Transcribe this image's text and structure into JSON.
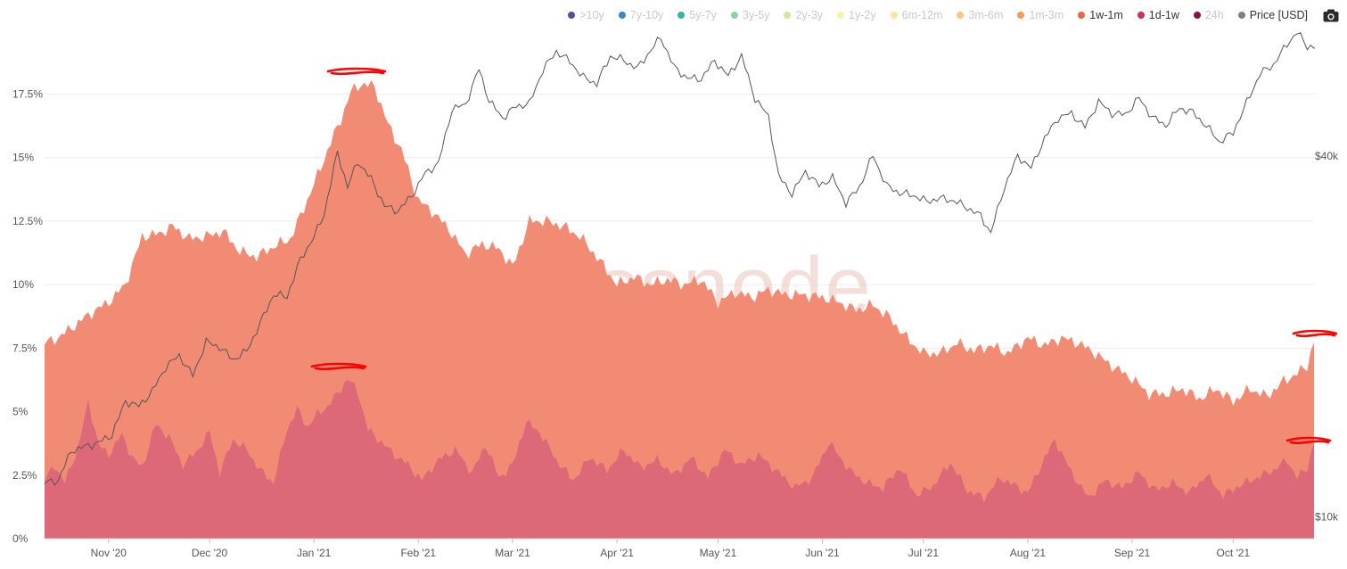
{
  "legend": [
    {
      "label": ">10y",
      "color": "#5b4a9c",
      "active": false
    },
    {
      "label": "7y-10y",
      "color": "#3a86c8",
      "active": false
    },
    {
      "label": "5y-7y",
      "color": "#3bb3a3",
      "active": false
    },
    {
      "label": "3y-5y",
      "color": "#8fd3a0",
      "active": false
    },
    {
      "label": "2y-3y",
      "color": "#cdeb9a",
      "active": false
    },
    {
      "label": "1y-2y",
      "color": "#f6f3a6",
      "active": false
    },
    {
      "label": "6m-12m",
      "color": "#fde59a",
      "active": false
    },
    {
      "label": "3m-6m",
      "color": "#fdc57f",
      "active": false
    },
    {
      "label": "1m-3m",
      "color": "#f89a5f",
      "active": false
    },
    {
      "label": "1w-1m",
      "color": "#ec6547",
      "active": true
    },
    {
      "label": "1d-1w",
      "color": "#cc3455",
      "active": true
    },
    {
      "label": "24h",
      "color": "#8e0f45",
      "active": false
    },
    {
      "label": "Price [USD]",
      "color": "#808080",
      "active": true
    }
  ],
  "toolbar": {
    "camera_icon": "camera-icon"
  },
  "watermark": "glassnode",
  "colors": {
    "area_1w_1m": "#f28b74",
    "area_1d_1w": "#dd6878",
    "price_line": "#555555",
    "annotation": "#ff0000"
  },
  "chart_data": {
    "type": "area",
    "x_start": "2020-10-13",
    "x_end": "2021-10-25",
    "x_ticks": [
      {
        "label": "Nov '20",
        "date": "2020-11-01"
      },
      {
        "label": "Dec '20",
        "date": "2020-12-01"
      },
      {
        "label": "Jan '21",
        "date": "2021-01-01"
      },
      {
        "label": "Feb '21",
        "date": "2021-02-01"
      },
      {
        "label": "Mar '21",
        "date": "2021-03-01"
      },
      {
        "label": "Apr '21",
        "date": "2021-04-01"
      },
      {
        "label": "May '21",
        "date": "2021-05-01"
      },
      {
        "label": "Jun '21",
        "date": "2021-06-01"
      },
      {
        "label": "Jul '21",
        "date": "2021-07-01"
      },
      {
        "label": "Aug '21",
        "date": "2021-08-01"
      },
      {
        "label": "Sep '21",
        "date": "2021-09-01"
      },
      {
        "label": "Oct '21",
        "date": "2021-10-01"
      }
    ],
    "y_left": {
      "ticks": [
        "0%",
        "2.5%",
        "5%",
        "7.5%",
        "10%",
        "12.5%",
        "15%",
        "17.5%"
      ],
      "values": [
        0,
        2.5,
        5,
        7.5,
        10,
        12.5,
        15,
        17.5
      ],
      "range": [
        0,
        20.5
      ]
    },
    "y_right": {
      "ticks": [
        "$10k",
        "$40k"
      ],
      "values": [
        10000,
        40000
      ],
      "scale": "log",
      "range": [
        9200,
        68000
      ]
    },
    "grid": "horizontal",
    "legend_position": "top-right",
    "series": [
      {
        "name": "1w-1m",
        "stacked_total": true,
        "x": [
          "2020-10-13",
          "2020-10-17",
          "2020-10-22",
          "2020-10-27",
          "2020-11-01",
          "2020-11-06",
          "2020-11-11",
          "2020-11-16",
          "2020-11-20",
          "2020-11-25",
          "2020-11-30",
          "2020-12-05",
          "2020-12-10",
          "2020-12-15",
          "2020-12-20",
          "2020-12-25",
          "2020-12-29",
          "2021-01-03",
          "2021-01-06",
          "2021-01-09",
          "2021-01-12",
          "2021-01-15",
          "2021-01-19",
          "2021-01-23",
          "2021-01-27",
          "2021-02-01",
          "2021-02-05",
          "2021-02-10",
          "2021-02-15",
          "2021-02-20",
          "2021-02-25",
          "2021-03-01",
          "2021-03-06",
          "2021-03-11",
          "2021-03-16",
          "2021-03-21",
          "2021-03-26",
          "2021-04-01",
          "2021-04-06",
          "2021-04-11",
          "2021-04-16",
          "2021-04-21",
          "2021-04-26",
          "2021-05-01",
          "2021-05-06",
          "2021-05-11",
          "2021-05-16",
          "2021-05-21",
          "2021-05-26",
          "2021-06-01",
          "2021-06-06",
          "2021-06-11",
          "2021-06-16",
          "2021-06-21",
          "2021-06-26",
          "2021-07-01",
          "2021-07-06",
          "2021-07-11",
          "2021-07-16",
          "2021-07-21",
          "2021-07-26",
          "2021-08-01",
          "2021-08-06",
          "2021-08-11",
          "2021-08-16",
          "2021-08-21",
          "2021-08-26",
          "2021-09-01",
          "2021-09-06",
          "2021-09-11",
          "2021-09-16",
          "2021-09-21",
          "2021-09-26",
          "2021-10-01",
          "2021-10-06",
          "2021-10-11",
          "2021-10-16",
          "2021-10-20",
          "2021-10-23",
          "2021-10-25"
        ],
        "y": [
          7.7,
          7.9,
          8.4,
          8.9,
          9.3,
          10.0,
          11.9,
          12.0,
          12.3,
          11.8,
          11.9,
          12.1,
          11.3,
          11.1,
          11.5,
          11.8,
          13.0,
          14.6,
          15.6,
          16.5,
          17.6,
          17.9,
          17.8,
          16.3,
          15.3,
          13.3,
          12.9,
          12.2,
          11.2,
          11.6,
          11.4,
          10.7,
          12.5,
          12.5,
          12.3,
          11.9,
          11.1,
          10.0,
          10.3,
          10.0,
          10.2,
          10.0,
          10.2,
          9.3,
          9.7,
          9.5,
          9.8,
          9.6,
          9.6,
          9.5,
          9.3,
          9.0,
          9.2,
          8.7,
          7.9,
          7.3,
          7.3,
          7.7,
          7.4,
          7.6,
          7.3,
          7.9,
          7.6,
          7.9,
          7.7,
          7.3,
          6.8,
          6.3,
          5.7,
          5.7,
          5.9,
          5.5,
          5.9,
          5.4,
          5.9,
          5.6,
          6.2,
          6.5,
          6.8,
          7.8
        ]
      },
      {
        "name": "1d-1w",
        "x": [
          "2020-10-13",
          "2020-10-16",
          "2020-10-19",
          "2020-10-23",
          "2020-10-26",
          "2020-10-29",
          "2020-11-01",
          "2020-11-05",
          "2020-11-08",
          "2020-11-11",
          "2020-11-15",
          "2020-11-19",
          "2020-11-23",
          "2020-11-27",
          "2020-12-01",
          "2020-12-04",
          "2020-12-08",
          "2020-12-12",
          "2020-12-16",
          "2020-12-20",
          "2020-12-24",
          "2020-12-27",
          "2020-12-30",
          "2021-01-02",
          "2021-01-05",
          "2021-01-08",
          "2021-01-11",
          "2021-01-14",
          "2021-01-17",
          "2021-01-21",
          "2021-01-25",
          "2021-01-29",
          "2021-02-02",
          "2021-02-07",
          "2021-02-12",
          "2021-02-17",
          "2021-02-21",
          "2021-02-25",
          "2021-03-01",
          "2021-03-05",
          "2021-03-09",
          "2021-03-14",
          "2021-03-19",
          "2021-03-24",
          "2021-03-29",
          "2021-04-03",
          "2021-04-08",
          "2021-04-13",
          "2021-04-18",
          "2021-04-23",
          "2021-04-28",
          "2021-05-03",
          "2021-05-08",
          "2021-05-13",
          "2021-05-19",
          "2021-05-24",
          "2021-05-29",
          "2021-06-03",
          "2021-06-09",
          "2021-06-14",
          "2021-06-19",
          "2021-06-24",
          "2021-06-29",
          "2021-07-04",
          "2021-07-09",
          "2021-07-14",
          "2021-07-19",
          "2021-07-24",
          "2021-07-28",
          "2021-08-01",
          "2021-08-05",
          "2021-08-09",
          "2021-08-14",
          "2021-08-19",
          "2021-08-24",
          "2021-08-29",
          "2021-09-03",
          "2021-09-08",
          "2021-09-13",
          "2021-09-18",
          "2021-09-23",
          "2021-09-28",
          "2021-10-03",
          "2021-10-08",
          "2021-10-13",
          "2021-10-17",
          "2021-10-20",
          "2021-10-23",
          "2021-10-25"
        ],
        "y": [
          2.3,
          2.9,
          2.2,
          3.6,
          5.4,
          3.7,
          3.3,
          4.1,
          3.2,
          2.8,
          4.5,
          4.0,
          2.9,
          3.4,
          4.2,
          2.6,
          3.9,
          3.5,
          2.7,
          2.2,
          4.3,
          5.1,
          4.4,
          4.9,
          5.2,
          5.7,
          6.3,
          5.8,
          4.3,
          3.8,
          3.3,
          2.9,
          2.3,
          3.1,
          3.5,
          2.6,
          3.7,
          2.4,
          2.9,
          4.6,
          4.2,
          3.1,
          2.3,
          3.2,
          2.7,
          3.5,
          2.8,
          3.1,
          2.5,
          3.2,
          2.4,
          3.5,
          2.9,
          3.3,
          2.6,
          2.0,
          2.4,
          3.8,
          2.7,
          2.2,
          2.0,
          2.8,
          1.7,
          2.1,
          3.0,
          1.9,
          1.6,
          2.4,
          2.1,
          1.8,
          2.9,
          3.9,
          2.6,
          1.6,
          2.3,
          2.0,
          2.6,
          1.9,
          2.2,
          1.8,
          2.5,
          1.7,
          2.1,
          2.4,
          2.7,
          3.1,
          2.4,
          2.8,
          3.8
        ]
      },
      {
        "name": "Price [USD]",
        "axis": "right",
        "x": [
          "2020-10-13",
          "2020-10-17",
          "2020-10-21",
          "2020-10-25",
          "2020-10-29",
          "2020-11-02",
          "2020-11-06",
          "2020-11-10",
          "2020-11-14",
          "2020-11-18",
          "2020-11-22",
          "2020-11-26",
          "2020-11-30",
          "2020-12-04",
          "2020-12-08",
          "2020-12-12",
          "2020-12-16",
          "2020-12-20",
          "2020-12-24",
          "2020-12-28",
          "2021-01-01",
          "2021-01-04",
          "2021-01-08",
          "2021-01-11",
          "2021-01-14",
          "2021-01-18",
          "2021-01-22",
          "2021-01-26",
          "2021-01-30",
          "2021-02-03",
          "2021-02-07",
          "2021-02-11",
          "2021-02-15",
          "2021-02-19",
          "2021-02-22",
          "2021-02-26",
          "2021-03-02",
          "2021-03-06",
          "2021-03-10",
          "2021-03-14",
          "2021-03-18",
          "2021-03-22",
          "2021-03-26",
          "2021-03-30",
          "2021-04-03",
          "2021-04-07",
          "2021-04-11",
          "2021-04-14",
          "2021-04-18",
          "2021-04-22",
          "2021-04-26",
          "2021-04-30",
          "2021-05-04",
          "2021-05-08",
          "2021-05-12",
          "2021-05-16",
          "2021-05-19",
          "2021-05-23",
          "2021-05-27",
          "2021-05-31",
          "2021-06-04",
          "2021-06-08",
          "2021-06-12",
          "2021-06-16",
          "2021-06-20",
          "2021-06-24",
          "2021-06-28",
          "2021-07-02",
          "2021-07-06",
          "2021-07-10",
          "2021-07-14",
          "2021-07-18",
          "2021-07-21",
          "2021-07-25",
          "2021-07-29",
          "2021-08-02",
          "2021-08-06",
          "2021-08-10",
          "2021-08-14",
          "2021-08-18",
          "2021-08-22",
          "2021-08-26",
          "2021-08-30",
          "2021-09-03",
          "2021-09-07",
          "2021-09-11",
          "2021-09-15",
          "2021-09-19",
          "2021-09-23",
          "2021-09-27",
          "2021-10-01",
          "2021-10-05",
          "2021-10-09",
          "2021-10-13",
          "2021-10-17",
          "2021-10-20",
          "2021-10-23",
          "2021-10-25"
        ],
        "y": [
          11400,
          11500,
          12900,
          13100,
          13300,
          13700,
          15600,
          15300,
          16200,
          17800,
          18600,
          17200,
          19600,
          19200,
          18300,
          18900,
          21000,
          23500,
          23300,
          26900,
          29300,
          32000,
          40600,
          35500,
          39200,
          36600,
          33000,
          32400,
          34300,
          37400,
          38900,
          47900,
          48700,
          55900,
          49500,
          46300,
          48400,
          48900,
          55700,
          59800,
          57500,
          54100,
          52800,
          58700,
          57800,
          56000,
          60000,
          63100,
          56200,
          53900,
          53800,
          57700,
          54400,
          58700,
          49900,
          46500,
          37000,
          34600,
          37700,
          35700,
          36800,
          33400,
          35500,
          40100,
          35700,
          34700,
          34400,
          33600,
          34000,
          33700,
          32800,
          31800,
          29800,
          35400,
          40000,
          38200,
          42800,
          46300,
          47100,
          44700,
          49300,
          47100,
          46900,
          50000,
          46400,
          45000,
          48100,
          47300,
          44900,
          42200,
          43800,
          49100,
          54900,
          56800,
          61500,
          64300,
          61000,
          60800
        ]
      }
    ]
  }
}
